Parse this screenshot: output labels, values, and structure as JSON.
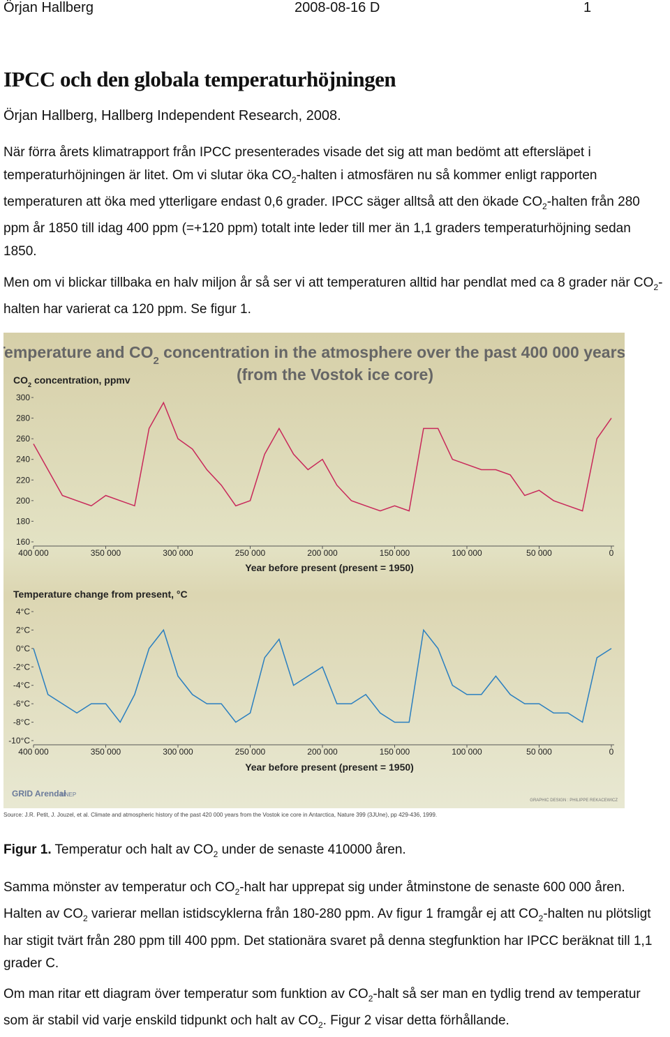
{
  "header": {
    "author": "Örjan Hallberg",
    "date": "2008-08-16 D",
    "page": "1"
  },
  "title": "IPCC och den globala temperaturhöjningen",
  "byline": "Örjan Hallberg, Hallberg Independent Research, 2008.",
  "paragraphs": [
    [
      "När förra årets klimatrapport från IPCC presenterades visade det sig att man bedömt att eftersläpet i temperaturhöjningen är litet. Om vi slutar öka CO",
      "2",
      "-halten i atmosfären nu så kommer enligt rapporten temperaturen att öka med ytterligare endast 0,6 grader. IPCC säger alltså att den ökade CO",
      "2",
      "-halten från 280 ppm år 1850 till idag 400 ppm (=+120 ppm) totalt inte leder till mer än 1,1 graders temperaturhöjning sedan 1850."
    ],
    [
      "Men om vi blickar tillbaka en halv miljon år så ser vi att temperaturen alltid har pendlat med ca 8 grader när CO",
      "2",
      "-halten har varierat ca 120 ppm. Se figur 1."
    ]
  ],
  "figure": {
    "title": [
      "Temperature and CO",
      "2",
      " concentration in the atmosphere over the past 400 000 years"
    ],
    "subtitle": "(from the Vostok ice core)",
    "source": "Source: J.R. Petit, J. Jouzel, et al. Climate and atmospheric history of the past 420 000 years from the Vostok ice core in Antarctica, Nature 399 (3JUne), pp 429-436, 1999.",
    "logo": "GRID Arendal",
    "logo2": "UNEP",
    "credit": "GRAPHIC DESIGN : PHILIPPE REKACEWICZ"
  },
  "chart_data": [
    {
      "type": "line",
      "ylabel": [
        "CO",
        "2",
        " concentration, ppmv"
      ],
      "xlabel": "Year before present (present = 1950)",
      "x": [
        400000,
        390000,
        380000,
        370000,
        360000,
        350000,
        340000,
        330000,
        320000,
        310000,
        300000,
        290000,
        280000,
        270000,
        260000,
        250000,
        240000,
        230000,
        220000,
        210000,
        200000,
        190000,
        180000,
        170000,
        160000,
        150000,
        140000,
        130000,
        120000,
        110000,
        100000,
        90000,
        80000,
        70000,
        60000,
        50000,
        40000,
        30000,
        20000,
        10000,
        0
      ],
      "xlim": [
        400000,
        0
      ],
      "xticks": [
        {
          "value": 400000,
          "label": "400 000"
        },
        {
          "value": 350000,
          "label": "350 000"
        },
        {
          "value": 300000,
          "label": "300 000"
        },
        {
          "value": 250000,
          "label": "250 000"
        },
        {
          "value": 200000,
          "label": "200 000"
        },
        {
          "value": 150000,
          "label": "150 000"
        },
        {
          "value": 100000,
          "label": "100 000"
        },
        {
          "value": 50000,
          "label": "50 000"
        },
        0
      ],
      "ylim": [
        160,
        300
      ],
      "yticks": [
        160,
        180,
        200,
        220,
        240,
        260,
        280,
        300
      ],
      "series": [
        {
          "color": "#c8285a",
          "values": [
            255,
            230,
            205,
            200,
            195,
            205,
            200,
            195,
            270,
            295,
            260,
            250,
            230,
            215,
            195,
            200,
            245,
            270,
            245,
            230,
            240,
            215,
            200,
            195,
            190,
            195,
            190,
            270,
            270,
            240,
            235,
            230,
            230,
            225,
            205,
            210,
            200,
            195,
            190,
            260,
            280
          ]
        }
      ]
    },
    {
      "type": "line",
      "ylabel": "Temperature change from present, °C",
      "xlabel": "Year before present (present = 1950)",
      "x": [
        400000,
        390000,
        380000,
        370000,
        360000,
        350000,
        340000,
        330000,
        320000,
        310000,
        300000,
        290000,
        280000,
        270000,
        260000,
        250000,
        240000,
        230000,
        220000,
        210000,
        200000,
        190000,
        180000,
        170000,
        160000,
        150000,
        140000,
        130000,
        120000,
        110000,
        100000,
        90000,
        80000,
        70000,
        60000,
        50000,
        40000,
        30000,
        20000,
        10000,
        0
      ],
      "xlim": [
        400000,
        0
      ],
      "xticks": [
        {
          "value": 400000,
          "label": "400 000"
        },
        {
          "value": 350000,
          "label": "350 000"
        },
        {
          "value": 300000,
          "label": "300 000"
        },
        {
          "value": 250000,
          "label": "250 000"
        },
        {
          "value": 200000,
          "label": "200 000"
        },
        {
          "value": 150000,
          "label": "150 000"
        },
        {
          "value": 100000,
          "label": "100 000"
        },
        {
          "value": 50000,
          "label": "50 000"
        },
        0
      ],
      "ylim": [
        -10,
        4
      ],
      "yticks": [
        {
          "value": 4,
          "label": "4°C"
        },
        {
          "value": 2,
          "label": "2°C"
        },
        {
          "value": 0,
          "label": "0°C"
        },
        {
          "value": -2,
          "label": "-2°C"
        },
        {
          "value": -4,
          "label": "-4°C"
        },
        {
          "value": -6,
          "label": "-6°C"
        },
        {
          "value": -8,
          "label": "-8°C"
        },
        {
          "value": -10,
          "label": "-10°C"
        }
      ],
      "series": [
        {
          "color": "#2a7fc0",
          "values": [
            0,
            -5,
            -6,
            -7,
            -6,
            -6,
            -8,
            -5,
            0,
            2,
            -3,
            -5,
            -6,
            -6,
            -8,
            -7,
            -1,
            1,
            -4,
            -3,
            -2,
            -6,
            -6,
            -5,
            -7,
            -8,
            -8,
            2,
            0,
            -4,
            -5,
            -5,
            -3,
            -5,
            -6,
            -6,
            -7,
            -7,
            -8,
            -1,
            0
          ]
        }
      ]
    }
  ],
  "caption": {
    "label": "Figur 1.",
    "text": [
      " Temperatur och halt av CO",
      "2",
      " under de senaste 410000 åren."
    ]
  },
  "paragraphs2": [
    [
      "Samma mönster av temperatur och CO",
      "2",
      "-halt har upprepat sig under åtminstone de senaste 600 000 åren. Halten av CO",
      "2",
      " varierar mellan istidscyklerna från 180-280 ppm. Av figur 1 framgår ej att CO",
      "2",
      "-halten nu plötsligt har stigit tvärt från 280 ppm till 400 ppm. Det stationära svaret på denna stegfunktion har IPCC beräknat till 1,1 grader C."
    ],
    [
      "Om man ritar ett diagram över temperatur som funktion av CO",
      "2",
      "-halt så ser man en tydlig trend av temperatur som är stabil vid varje enskild tidpunkt och halt av CO",
      "2",
      ". Figur 2 visar detta förhållande."
    ]
  ]
}
